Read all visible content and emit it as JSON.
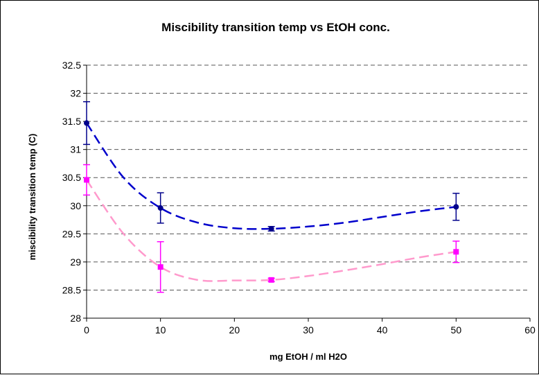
{
  "chart_data": {
    "type": "scatter",
    "title": "Miscibility transition temp vs EtOH conc.",
    "xlabel": "mg EtOH / ml H2O",
    "ylabel": "miscibility transition temp (C)",
    "xlim": [
      0,
      60
    ],
    "ylim": [
      28,
      32.5
    ],
    "x_ticks": [
      0,
      10,
      20,
      30,
      40,
      50,
      60
    ],
    "y_ticks": [
      28,
      28.5,
      29,
      29.5,
      30,
      30.5,
      31,
      31.5,
      32,
      32.5
    ],
    "y_tick_labels": [
      "28",
      "28.5",
      "29",
      "29.5",
      "30",
      "30.5",
      "31",
      "31.5",
      "32",
      "32.5"
    ],
    "grid": "horizontal-dashed",
    "legend": "none",
    "series": [
      {
        "color": "#00008B",
        "trend_color": "#0000CC",
        "marker": "circle",
        "x": [
          0,
          10,
          25,
          50
        ],
        "y": [
          31.47,
          29.96,
          29.59,
          29.98
        ],
        "err": [
          0.38,
          0.27,
          0.04,
          0.24
        ],
        "trend": {
          "x": [
            0,
            5,
            10,
            15,
            20,
            25,
            30,
            35,
            40,
            45,
            50
          ],
          "y": [
            31.47,
            30.5,
            29.96,
            29.7,
            29.6,
            29.59,
            29.63,
            29.7,
            29.8,
            29.9,
            29.98
          ]
        }
      },
      {
        "color": "#FF00FF",
        "trend_color": "#FF99CC",
        "marker": "square",
        "x": [
          0,
          10,
          25,
          50
        ],
        "y": [
          30.46,
          28.91,
          28.68,
          29.18
        ],
        "err": [
          0.27,
          0.45,
          0.03,
          0.19
        ],
        "trend": {
          "x": [
            0,
            5,
            10,
            15,
            20,
            25,
            30,
            35,
            40,
            45,
            50
          ],
          "y": [
            30.46,
            29.5,
            28.91,
            28.68,
            28.67,
            28.68,
            28.75,
            28.85,
            28.96,
            29.08,
            29.18
          ]
        }
      }
    ]
  }
}
